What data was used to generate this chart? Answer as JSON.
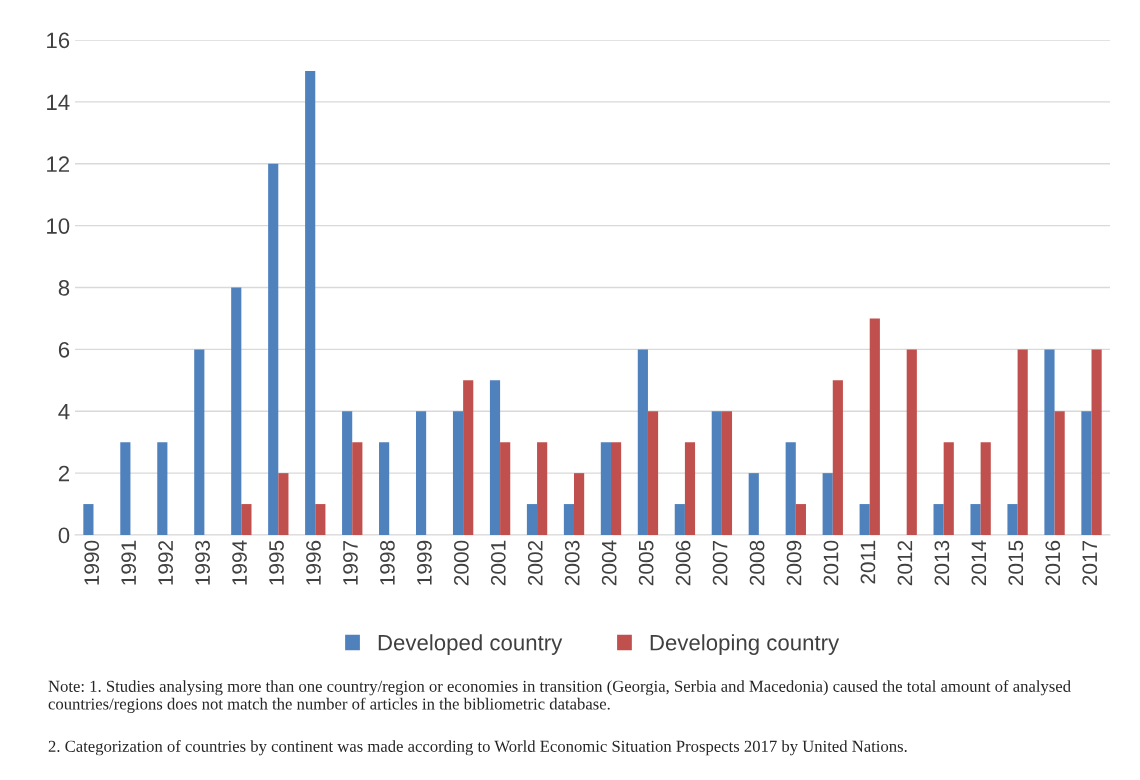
{
  "chart_data": {
    "type": "bar",
    "categories": [
      "1990",
      "1991",
      "1992",
      "1993",
      "1994",
      "1995",
      "1996",
      "1997",
      "1998",
      "1999",
      "2000",
      "2001",
      "2002",
      "2003",
      "2004",
      "2005",
      "2006",
      "2007",
      "2008",
      "2009",
      "2010",
      "2011",
      "2012",
      "2013",
      "2014",
      "2015",
      "2016",
      "2017"
    ],
    "series": [
      {
        "name": "Developed country",
        "color": "#4f81bd",
        "values": [
          1,
          3,
          3,
          6,
          8,
          12,
          15,
          4,
          3,
          4,
          4,
          5,
          1,
          1,
          3,
          6,
          1,
          4,
          2,
          3,
          2,
          1,
          null,
          1,
          1,
          1,
          6,
          4
        ]
      },
      {
        "name": "Developing country",
        "color": "#c0504d",
        "values": [
          null,
          null,
          null,
          null,
          1,
          2,
          1,
          3,
          null,
          null,
          5,
          3,
          3,
          2,
          3,
          4,
          3,
          4,
          null,
          1,
          5,
          7,
          6,
          3,
          3,
          6,
          4,
          6
        ]
      }
    ],
    "ylim": [
      0,
      16
    ],
    "yticks": [
      0,
      2,
      4,
      6,
      8,
      10,
      12,
      14,
      16
    ],
    "grid": "y",
    "legend": "bottom",
    "annotations": [
      "Note: 1. Studies analysing more than one country/region or economies in transition (Georgia, Serbia and Macedonia) caused the total amount of analysed countries/regions does not match the number of articles in the bibliometric database.",
      "2. Categorization of countries by continent was made according to World Economic Situation Prospects 2017 by United Nations."
    ]
  }
}
